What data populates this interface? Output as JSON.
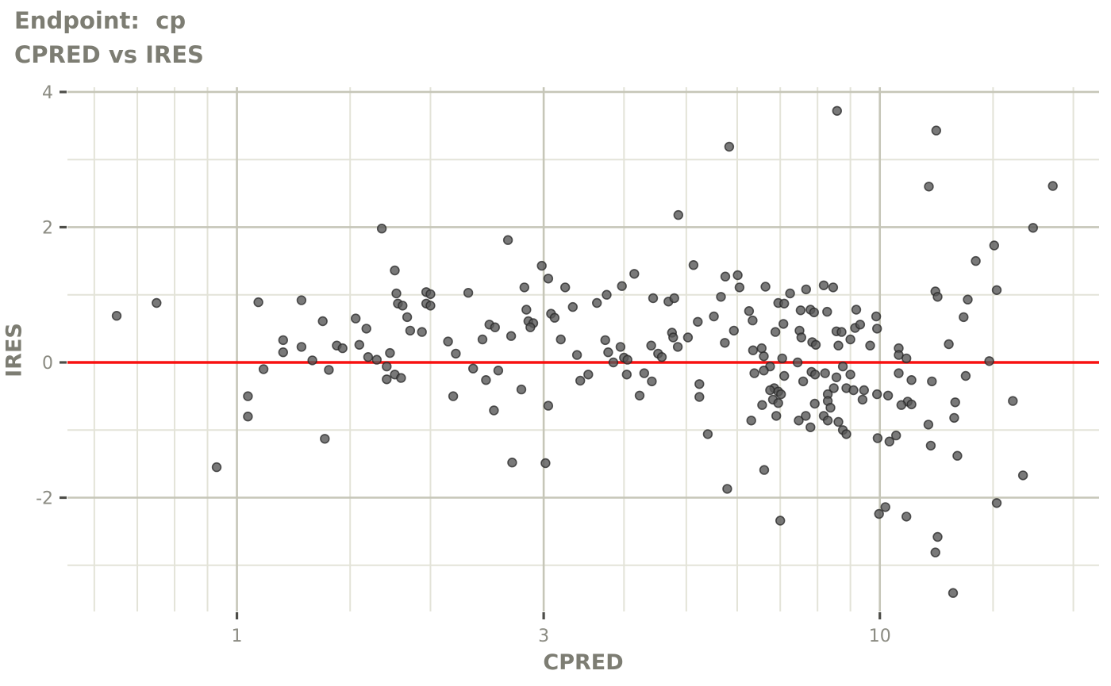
{
  "title": {
    "line1": "Endpoint:  cp",
    "line2": "CPRED vs IRES"
  },
  "chart_data": {
    "type": "scatter",
    "title": "Endpoint:  cp",
    "subtitle": "CPRED vs IRES",
    "xlabel": "CPRED",
    "ylabel": "IRES",
    "x_scale": "log10",
    "grid": true,
    "legend": "none",
    "x_range": [
      0.545,
      21.93
    ],
    "y_range": [
      -3.683,
      4.07
    ],
    "x_ticks": [
      1,
      3,
      10
    ],
    "x_tick_labels": [
      "1",
      "3",
      "10"
    ],
    "y_ticks": [
      -2,
      0,
      2,
      4
    ],
    "y_tick_labels": [
      "-2",
      "0",
      "2",
      "4"
    ],
    "x_minor_grid": [
      0.6,
      0.7,
      0.8,
      0.9,
      1.5,
      2,
      4,
      5,
      6,
      7,
      8,
      9,
      15,
      20
    ],
    "y_minor_grid": [
      -3,
      -1,
      1,
      3
    ],
    "ref_line": {
      "y": 0,
      "color": "#f81110"
    },
    "colors": {
      "point_fill": "#585858",
      "point_stroke": "#262626",
      "grid_major": "#c6c6b8",
      "grid_minor": "#e3e3d8",
      "tick_mark": "#4d4d48",
      "text": "#7d7d73",
      "tick_label": "#8b8b82",
      "background": "#ffffff"
    },
    "points": [
      [
        1.68,
        1.98
      ],
      [
        5.83,
        3.19
      ],
      [
        4.86,
        2.18
      ],
      [
        2.64,
        1.81
      ],
      [
        8.58,
        3.72
      ],
      [
        12.24,
        3.43
      ],
      [
        11.92,
        2.6
      ],
      [
        18.58,
        2.61
      ],
      [
        17.31,
        1.99
      ],
      [
        15.06,
        1.73
      ],
      [
        14.1,
        1.5
      ],
      [
        0.75,
        0.88
      ],
      [
        0.65,
        0.69
      ],
      [
        1.08,
        0.89
      ],
      [
        1.26,
        0.92
      ],
      [
        1.36,
        0.61
      ],
      [
        1.53,
        0.65
      ],
      [
        1.59,
        0.5
      ],
      [
        1.18,
        0.33
      ],
      [
        1.18,
        0.15
      ],
      [
        1.26,
        0.23
      ],
      [
        1.31,
        0.03
      ],
      [
        1.43,
        0.25
      ],
      [
        1.46,
        0.21
      ],
      [
        1.55,
        0.26
      ],
      [
        1.39,
        -0.11
      ],
      [
        1.1,
        -0.1
      ],
      [
        1.6,
        0.08
      ],
      [
        1.65,
        0.04
      ],
      [
        1.73,
        0.14
      ],
      [
        1.77,
        1.02
      ],
      [
        1.76,
        1.36
      ],
      [
        1.78,
        0.87
      ],
      [
        1.81,
        0.84
      ],
      [
        1.84,
        0.67
      ],
      [
        1.76,
        -0.18
      ],
      [
        1.8,
        -0.23
      ],
      [
        1.71,
        -0.25
      ],
      [
        1.71,
        -0.06
      ],
      [
        1.04,
        -0.5
      ],
      [
        1.04,
        -0.8
      ],
      [
        0.93,
        -1.55
      ],
      [
        1.37,
        -1.13
      ],
      [
        1.97,
        1.04
      ],
      [
        2.0,
        1.01
      ],
      [
        1.97,
        0.87
      ],
      [
        2.0,
        0.84
      ],
      [
        2.29,
        1.03
      ],
      [
        2.8,
        1.11
      ],
      [
        2.98,
        1.43
      ],
      [
        3.05,
        1.24
      ],
      [
        3.24,
        1.11
      ],
      [
        5.13,
        1.44
      ],
      [
        4.15,
        1.31
      ],
      [
        3.97,
        1.13
      ],
      [
        5.75,
        1.27
      ],
      [
        6.01,
        1.29
      ],
      [
        6.05,
        1.11
      ],
      [
        3.33,
        0.82
      ],
      [
        3.63,
        0.88
      ],
      [
        3.76,
        1.0
      ],
      [
        4.44,
        0.95
      ],
      [
        4.69,
        0.9
      ],
      [
        4.79,
        0.95
      ],
      [
        5.66,
        0.97
      ],
      [
        2.82,
        0.78
      ],
      [
        2.84,
        0.61
      ],
      [
        2.89,
        0.58
      ],
      [
        2.86,
        0.52
      ],
      [
        3.08,
        0.72
      ],
      [
        3.12,
        0.66
      ],
      [
        2.13,
        0.31
      ],
      [
        2.19,
        0.13
      ],
      [
        2.41,
        0.34
      ],
      [
        2.47,
        0.56
      ],
      [
        2.52,
        0.52
      ],
      [
        2.67,
        0.39
      ],
      [
        1.94,
        0.45
      ],
      [
        1.86,
        0.47
      ],
      [
        3.19,
        0.34
      ],
      [
        3.38,
        0.11
      ],
      [
        3.74,
        0.33
      ],
      [
        3.78,
        0.15
      ],
      [
        3.95,
        0.23
      ],
      [
        3.85,
        0.0
      ],
      [
        4.0,
        0.07
      ],
      [
        4.05,
        0.04
      ],
      [
        4.41,
        0.25
      ],
      [
        4.52,
        0.13
      ],
      [
        4.58,
        0.08
      ],
      [
        4.75,
        0.44
      ],
      [
        4.77,
        0.37
      ],
      [
        4.85,
        0.23
      ],
      [
        5.03,
        0.37
      ],
      [
        5.21,
        0.6
      ],
      [
        5.52,
        0.68
      ],
      [
        5.93,
        0.47
      ],
      [
        5.74,
        0.29
      ],
      [
        2.33,
        -0.09
      ],
      [
        2.44,
        -0.26
      ],
      [
        2.55,
        -0.12
      ],
      [
        2.17,
        -0.5
      ],
      [
        2.51,
        -0.71
      ],
      [
        2.77,
        -0.4
      ],
      [
        3.05,
        -0.64
      ],
      [
        3.42,
        -0.27
      ],
      [
        3.52,
        -0.18
      ],
      [
        4.04,
        -0.18
      ],
      [
        4.3,
        -0.16
      ],
      [
        4.42,
        -0.28
      ],
      [
        4.23,
        -0.49
      ],
      [
        5.24,
        -0.32
      ],
      [
        5.24,
        -0.51
      ],
      [
        5.4,
        -1.06
      ],
      [
        2.68,
        -1.48
      ],
      [
        3.02,
        -1.49
      ],
      [
        5.79,
        -1.87
      ],
      [
        6.26,
        0.76
      ],
      [
        6.34,
        0.62
      ],
      [
        6.35,
        0.18
      ],
      [
        6.38,
        -0.16
      ],
      [
        6.31,
        -0.86
      ],
      [
        6.64,
        1.12
      ],
      [
        7.25,
        1.02
      ],
      [
        7.68,
        1.08
      ],
      [
        8.18,
        1.14
      ],
      [
        8.46,
        1.11
      ],
      [
        6.95,
        0.88
      ],
      [
        7.1,
        0.87
      ],
      [
        7.53,
        0.77
      ],
      [
        7.8,
        0.78
      ],
      [
        7.9,
        0.74
      ],
      [
        8.28,
        0.75
      ],
      [
        9.19,
        0.78
      ],
      [
        12.2,
        1.05
      ],
      [
        12.3,
        0.97
      ],
      [
        13.7,
        0.93
      ],
      [
        15.2,
        1.07
      ],
      [
        13.5,
        0.67
      ],
      [
        7.08,
        0.57
      ],
      [
        6.88,
        0.45
      ],
      [
        7.5,
        0.47
      ],
      [
        7.55,
        0.37
      ],
      [
        8.56,
        0.46
      ],
      [
        8.72,
        0.45
      ],
      [
        9.15,
        0.51
      ],
      [
        9.32,
        0.56
      ],
      [
        9.0,
        0.34
      ],
      [
        7.85,
        0.3
      ],
      [
        7.95,
        0.26
      ],
      [
        8.62,
        0.25
      ],
      [
        9.66,
        0.25
      ],
      [
        9.87,
        0.68
      ],
      [
        9.9,
        0.5
      ],
      [
        10.7,
        0.21
      ],
      [
        10.7,
        0.11
      ],
      [
        11.0,
        0.06
      ],
      [
        6.55,
        0.21
      ],
      [
        6.6,
        0.09
      ],
      [
        7.05,
        0.06
      ],
      [
        7.45,
        0.0
      ],
      [
        6.75,
        -0.06
      ],
      [
        6.6,
        -0.12
      ],
      [
        7.1,
        -0.2
      ],
      [
        7.83,
        -0.14
      ],
      [
        7.93,
        -0.18
      ],
      [
        8.22,
        -0.16
      ],
      [
        8.56,
        -0.22
      ],
      [
        8.76,
        -0.06
      ],
      [
        9.0,
        -0.18
      ],
      [
        7.6,
        -0.28
      ],
      [
        6.85,
        -0.38
      ],
      [
        6.75,
        -0.41
      ],
      [
        6.95,
        -0.43
      ],
      [
        7.02,
        -0.47
      ],
      [
        8.48,
        -0.38
      ],
      [
        8.3,
        -0.47
      ],
      [
        8.87,
        -0.38
      ],
      [
        9.1,
        -0.41
      ],
      [
        9.45,
        -0.41
      ],
      [
        9.4,
        -0.55
      ],
      [
        9.9,
        -0.47
      ],
      [
        10.3,
        -0.49
      ],
      [
        7.92,
        -0.61
      ],
      [
        8.3,
        -0.57
      ],
      [
        8.38,
        -0.67
      ],
      [
        6.82,
        -0.55
      ],
      [
        6.95,
        -0.6
      ],
      [
        6.56,
        -0.63
      ],
      [
        6.9,
        -0.79
      ],
      [
        7.48,
        -0.86
      ],
      [
        7.67,
        -0.79
      ],
      [
        7.8,
        -0.96
      ],
      [
        8.18,
        -0.79
      ],
      [
        8.3,
        -0.86
      ],
      [
        8.62,
        -0.88
      ],
      [
        8.76,
        -1.0
      ],
      [
        8.87,
        -1.06
      ],
      [
        10.7,
        -0.16
      ],
      [
        11.2,
        -0.26
      ],
      [
        11.05,
        -0.58
      ],
      [
        11.2,
        -0.62
      ],
      [
        10.8,
        -0.63
      ],
      [
        11.9,
        -0.92
      ],
      [
        12.05,
        -0.28
      ],
      [
        12.8,
        0.27
      ],
      [
        13.6,
        -0.2
      ],
      [
        14.8,
        0.02
      ],
      [
        16.1,
        -0.57
      ],
      [
        13.1,
        -0.59
      ],
      [
        13.05,
        -0.82
      ],
      [
        6.61,
        -1.59
      ],
      [
        7.0,
        -2.34
      ],
      [
        9.92,
        -1.12
      ],
      [
        10.35,
        -1.17
      ],
      [
        10.6,
        -1.08
      ],
      [
        12.0,
        -1.23
      ],
      [
        13.2,
        -1.38
      ],
      [
        16.7,
        -1.67
      ],
      [
        15.2,
        -2.08
      ],
      [
        10.2,
        -2.14
      ],
      [
        9.97,
        -2.24
      ],
      [
        11.0,
        -2.28
      ],
      [
        12.3,
        -2.58
      ],
      [
        12.2,
        -2.81
      ],
      [
        13.0,
        -3.41
      ]
    ]
  }
}
